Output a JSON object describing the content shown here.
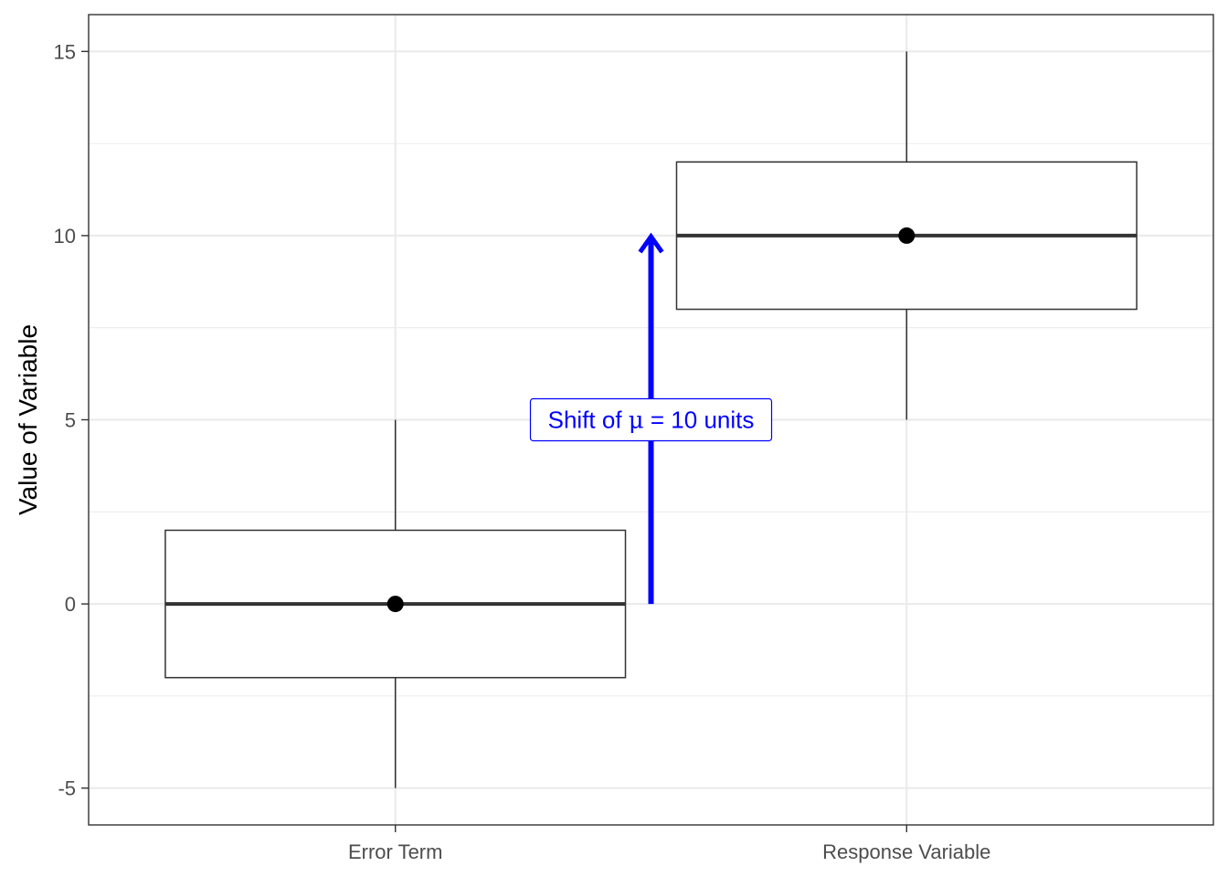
{
  "chart_data": {
    "type": "box",
    "title": "",
    "xlabel": "",
    "ylabel": "Value of Variable",
    "ylim": [
      -6,
      16
    ],
    "yticks": [
      -5,
      0,
      5,
      10,
      15
    ],
    "ytick_labels": [
      "-5",
      "0",
      "5",
      "10",
      "15"
    ],
    "grid": true,
    "categories": [
      "Error Term",
      "Response Variable"
    ],
    "boxes": [
      {
        "category": "Error Term",
        "min": -5,
        "q1": -2,
        "median": 0,
        "q3": 2,
        "max": 5,
        "mean": 0
      },
      {
        "category": "Response Variable",
        "min": 5,
        "q1": 8,
        "median": 10,
        "q3": 12,
        "max": 15,
        "mean": 10
      }
    ],
    "annotation": {
      "arrow_from": 0,
      "arrow_to": 10,
      "label_value": 5,
      "label_prefix": "Shift of ",
      "label_symbol": "μ",
      "label_suffix": " = 10 units",
      "color": "#0000ff"
    }
  }
}
